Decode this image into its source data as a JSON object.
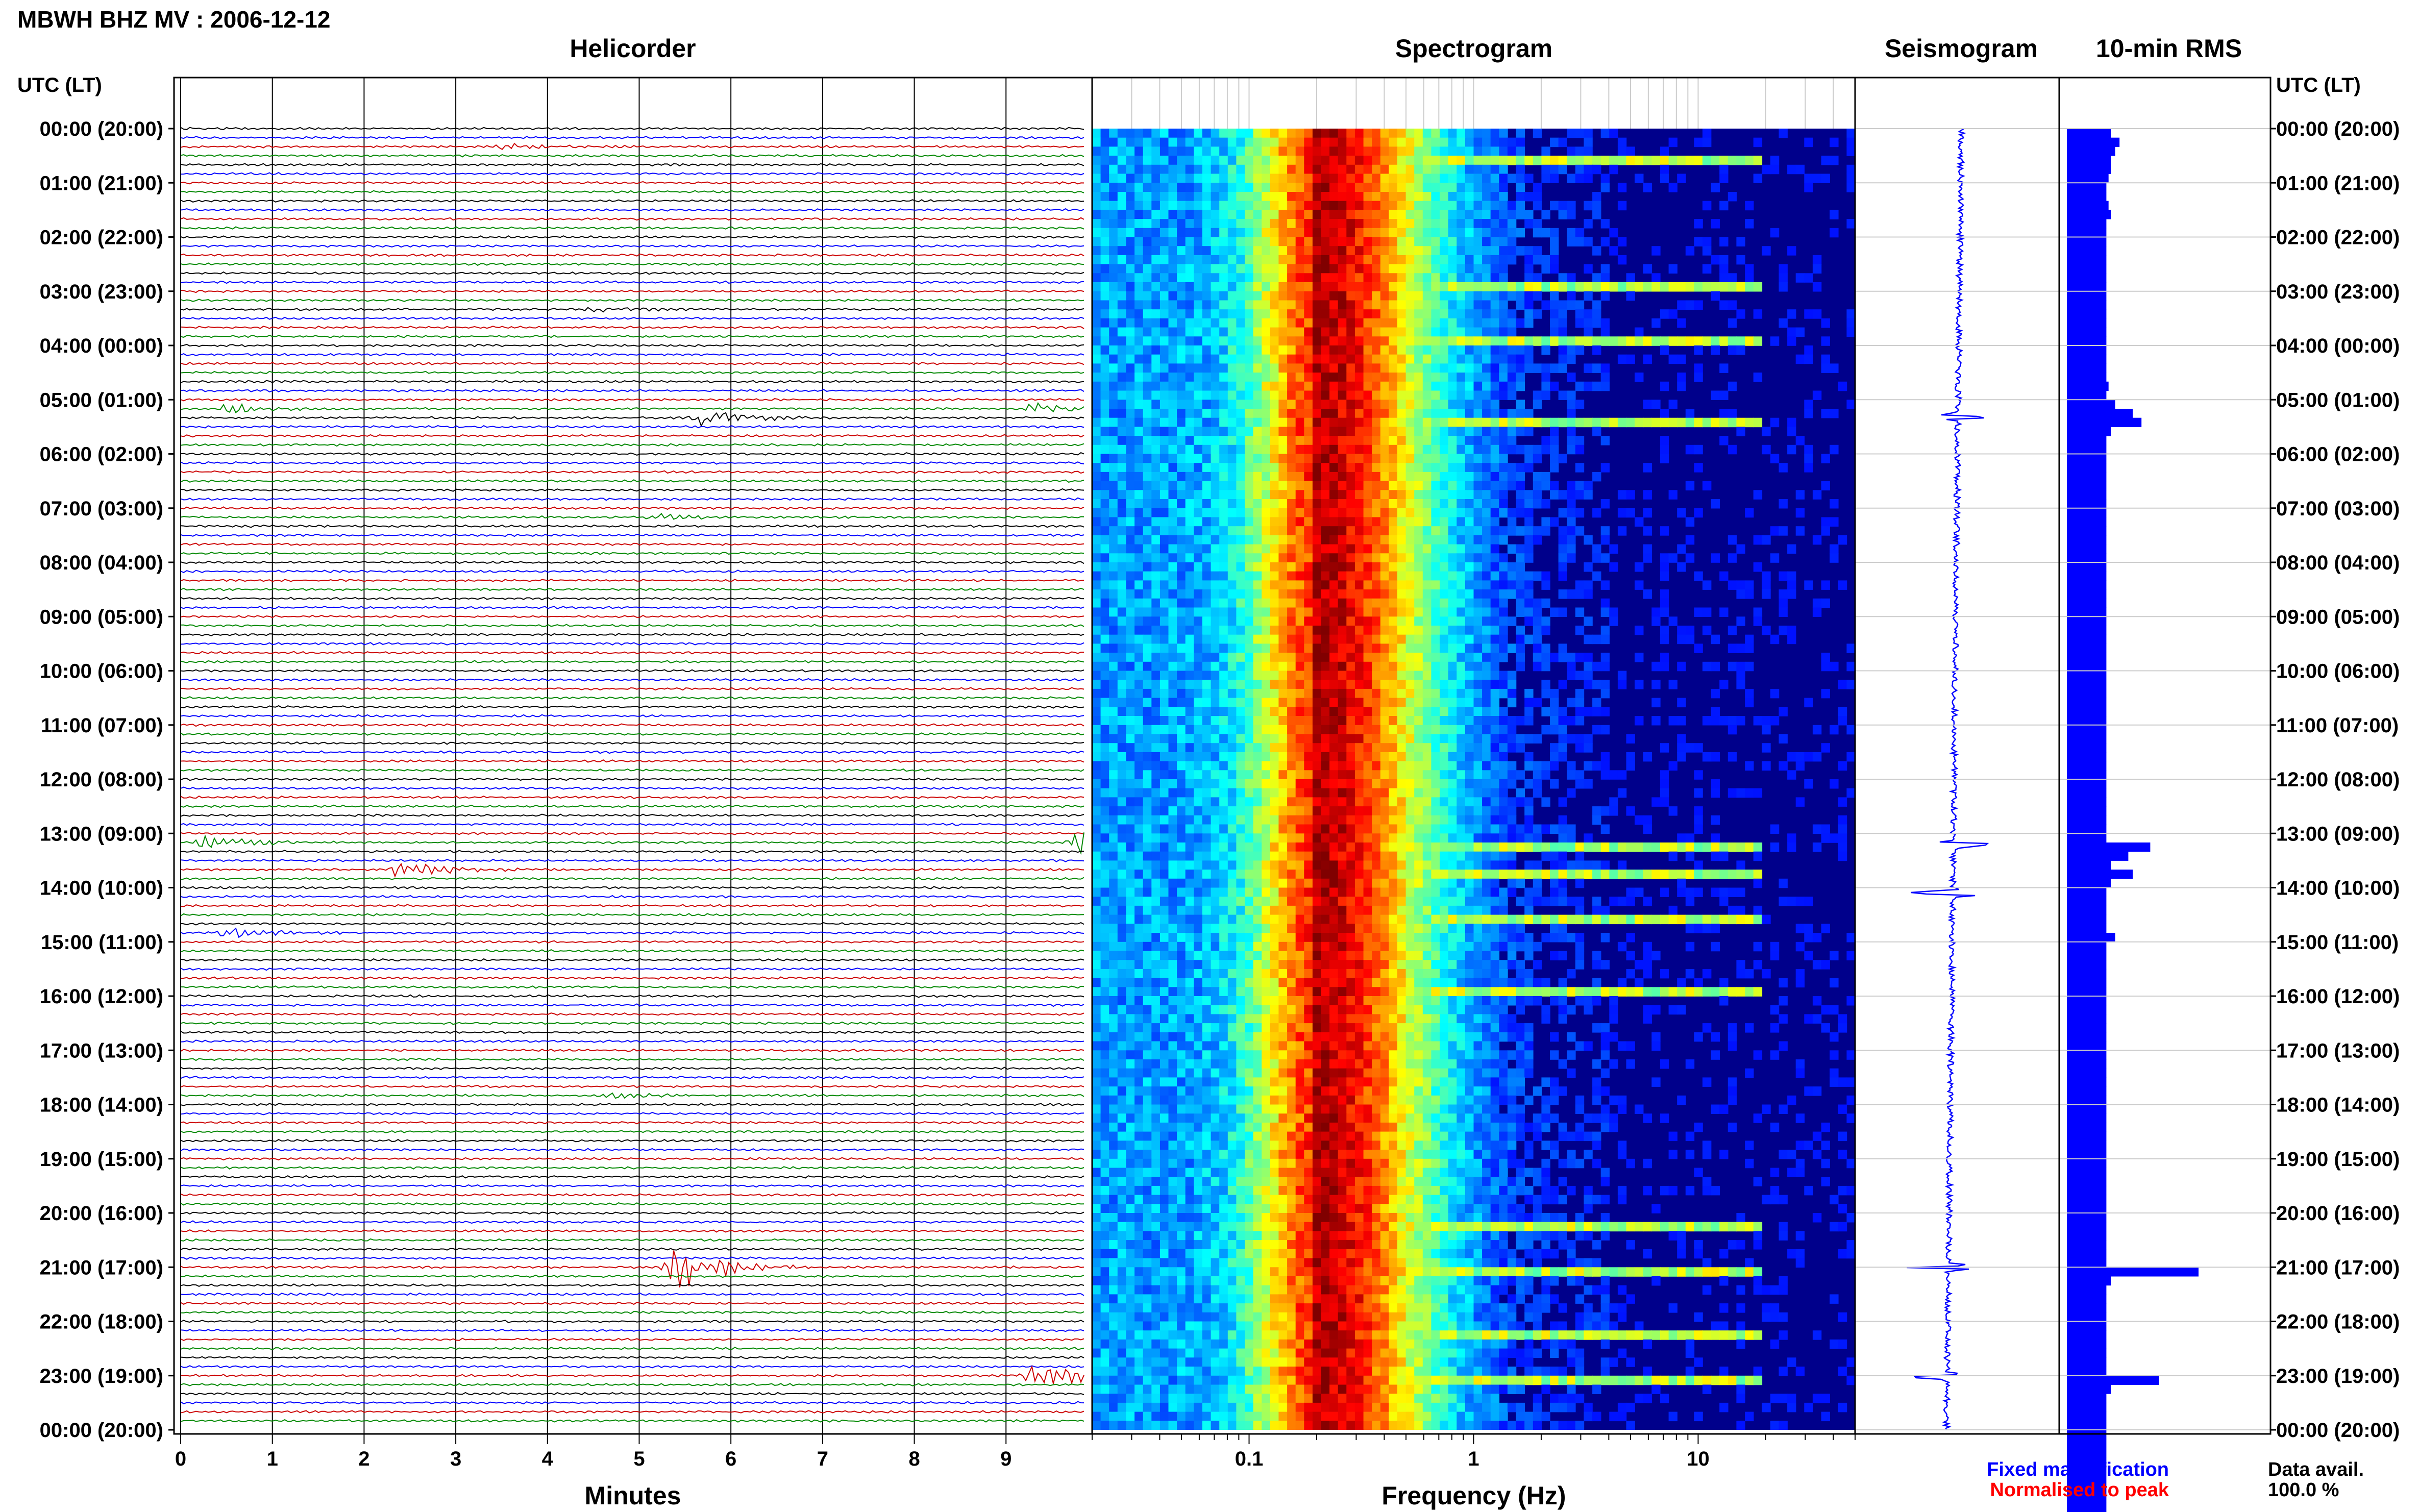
{
  "figure_title": "MBWH BHZ MV : 2006-12-12",
  "colors": {
    "trace_cycle": [
      "#000000",
      "#0000ff",
      "#cc0000",
      "#008800"
    ],
    "rms_bar": "#0000ff",
    "seismogram": "#0000ff",
    "legend_fixed": "#0000ff",
    "legend_normalised": "#ff0000",
    "spectrogram_background": "#00008b"
  },
  "time_axis": {
    "header": "UTC (LT)",
    "labels": [
      "00:00 (20:00)",
      "01:00 (21:00)",
      "02:00 (22:00)",
      "03:00 (23:00)",
      "04:00 (00:00)",
      "05:00 (01:00)",
      "06:00 (02:00)",
      "07:00 (03:00)",
      "08:00 (04:00)",
      "09:00 (05:00)",
      "10:00 (06:00)",
      "11:00 (07:00)",
      "12:00 (08:00)",
      "13:00 (09:00)",
      "14:00 (10:00)",
      "15:00 (11:00)",
      "16:00 (12:00)",
      "17:00 (13:00)",
      "18:00 (14:00)",
      "19:00 (15:00)",
      "20:00 (16:00)",
      "21:00 (17:00)",
      "22:00 (18:00)",
      "23:00 (19:00)",
      "00:00 (20:00)"
    ]
  },
  "chart_data": [
    {
      "type": "line",
      "title": "Helicorder",
      "xlabel": "Minutes",
      "x_ticks": [
        0,
        1,
        2,
        3,
        4,
        5,
        6,
        7,
        8,
        9
      ],
      "xlim": [
        0,
        10
      ],
      "row_minutes": 10,
      "rows": 144,
      "events": [
        {
          "row": 2,
          "minute": 3.5,
          "amp": 3,
          "color_index": 0
        },
        {
          "row": 20,
          "minute": 4.5,
          "amp": 2,
          "color_index": 0
        },
        {
          "row": 31,
          "minute": 0.5,
          "amp": 5,
          "color_index": 0
        },
        {
          "row": 31,
          "minute": 9.3,
          "amp": 7,
          "color_index": 3
        },
        {
          "row": 32,
          "minute": 5.7,
          "amp": 9,
          "color_index": 2
        },
        {
          "row": 43,
          "minute": 5.2,
          "amp": 3,
          "color_index": 3
        },
        {
          "row": 79,
          "minute": 0.3,
          "amp": 8,
          "color_index": 0
        },
        {
          "row": 79,
          "minute": 9.8,
          "amp": 14,
          "color_index": 3
        },
        {
          "row": 82,
          "minute": 2.4,
          "amp": 9,
          "color_index": 3
        },
        {
          "row": 89,
          "minute": 0.5,
          "amp": 5,
          "color_index": 1
        },
        {
          "row": 107,
          "minute": 4.7,
          "amp": 3,
          "color_index": 3
        },
        {
          "row": 126,
          "minute": 5.4,
          "amp": 26,
          "color_index": 1
        },
        {
          "row": 138,
          "minute": 9.3,
          "amp": 18,
          "color_index": 2
        }
      ]
    },
    {
      "type": "heatmap",
      "title": "Spectrogram",
      "xlabel": "Frequency (Hz)",
      "x_scale": "log",
      "x_ticks": [
        0.1,
        1,
        10
      ],
      "x_tick_labels": [
        "0.1",
        "1",
        "10"
      ],
      "xlim": [
        0.02,
        50
      ],
      "peak_frequency_hz": 0.2,
      "event_rows": [
        3,
        17,
        23,
        32,
        79,
        82,
        87,
        95,
        121,
        126,
        133,
        138
      ]
    },
    {
      "type": "line",
      "title": "Seismogram",
      "event_hours": [
        5.3,
        13.2,
        14.1,
        21.0,
        23.0
      ]
    },
    {
      "type": "bar",
      "title": "10-min RMS",
      "units": "relative",
      "values": [
        1.0,
        1.2,
        1.1,
        1.0,
        1.0,
        0.95,
        0.9,
        0.9,
        0.95,
        1.0,
        0.9,
        0.9,
        0.9,
        0.9,
        0.9,
        0.9,
        0.9,
        0.9,
        0.9,
        0.9,
        0.9,
        0.9,
        0.9,
        0.9,
        0.9,
        0.9,
        0.9,
        0.9,
        0.95,
        0.9,
        1.1,
        1.5,
        1.7,
        1.0,
        0.9,
        0.9,
        0.9,
        0.9,
        0.9,
        0.9,
        0.9,
        0.9,
        0.9,
        0.9,
        0.9,
        0.9,
        0.9,
        0.9,
        0.9,
        0.9,
        0.9,
        0.9,
        0.9,
        0.9,
        0.9,
        0.9,
        0.9,
        0.9,
        0.9,
        0.9,
        0.9,
        0.9,
        0.9,
        0.9,
        0.9,
        0.9,
        0.9,
        0.9,
        0.9,
        0.9,
        0.9,
        0.9,
        0.9,
        0.9,
        0.9,
        0.9,
        0.9,
        0.9,
        0.9,
        1.9,
        1.4,
        1.0,
        1.5,
        1.0,
        0.9,
        0.9,
        0.9,
        0.9,
        0.9,
        1.1,
        0.9,
        0.9,
        0.9,
        0.9,
        0.9,
        0.9,
        0.9,
        0.9,
        0.9,
        0.9,
        0.9,
        0.9,
        0.9,
        0.9,
        0.9,
        0.9,
        0.9,
        0.9,
        0.9,
        0.9,
        0.9,
        0.9,
        0.9,
        0.9,
        0.9,
        0.9,
        0.9,
        0.9,
        0.9,
        0.9,
        0.9,
        0.9,
        0.9,
        0.9,
        0.9,
        0.9,
        3.0,
        1.0,
        0.9,
        0.9,
        0.9,
        0.9,
        0.9,
        0.9,
        0.9,
        0.9,
        0.9,
        0.9,
        2.1,
        1.0,
        0.9,
        0.9,
        0.9,
        0.9,
        0.9,
        0.9,
        0.9,
        0.9,
        0.9,
        0.9,
        0.9,
        0.9,
        0.9,
        0.9
      ]
    }
  ],
  "legend": {
    "fixed": "Fixed magnification",
    "normalised": "Normalised to peak"
  },
  "data_availability": {
    "label": "Data avail.",
    "value": "100.0 %"
  }
}
